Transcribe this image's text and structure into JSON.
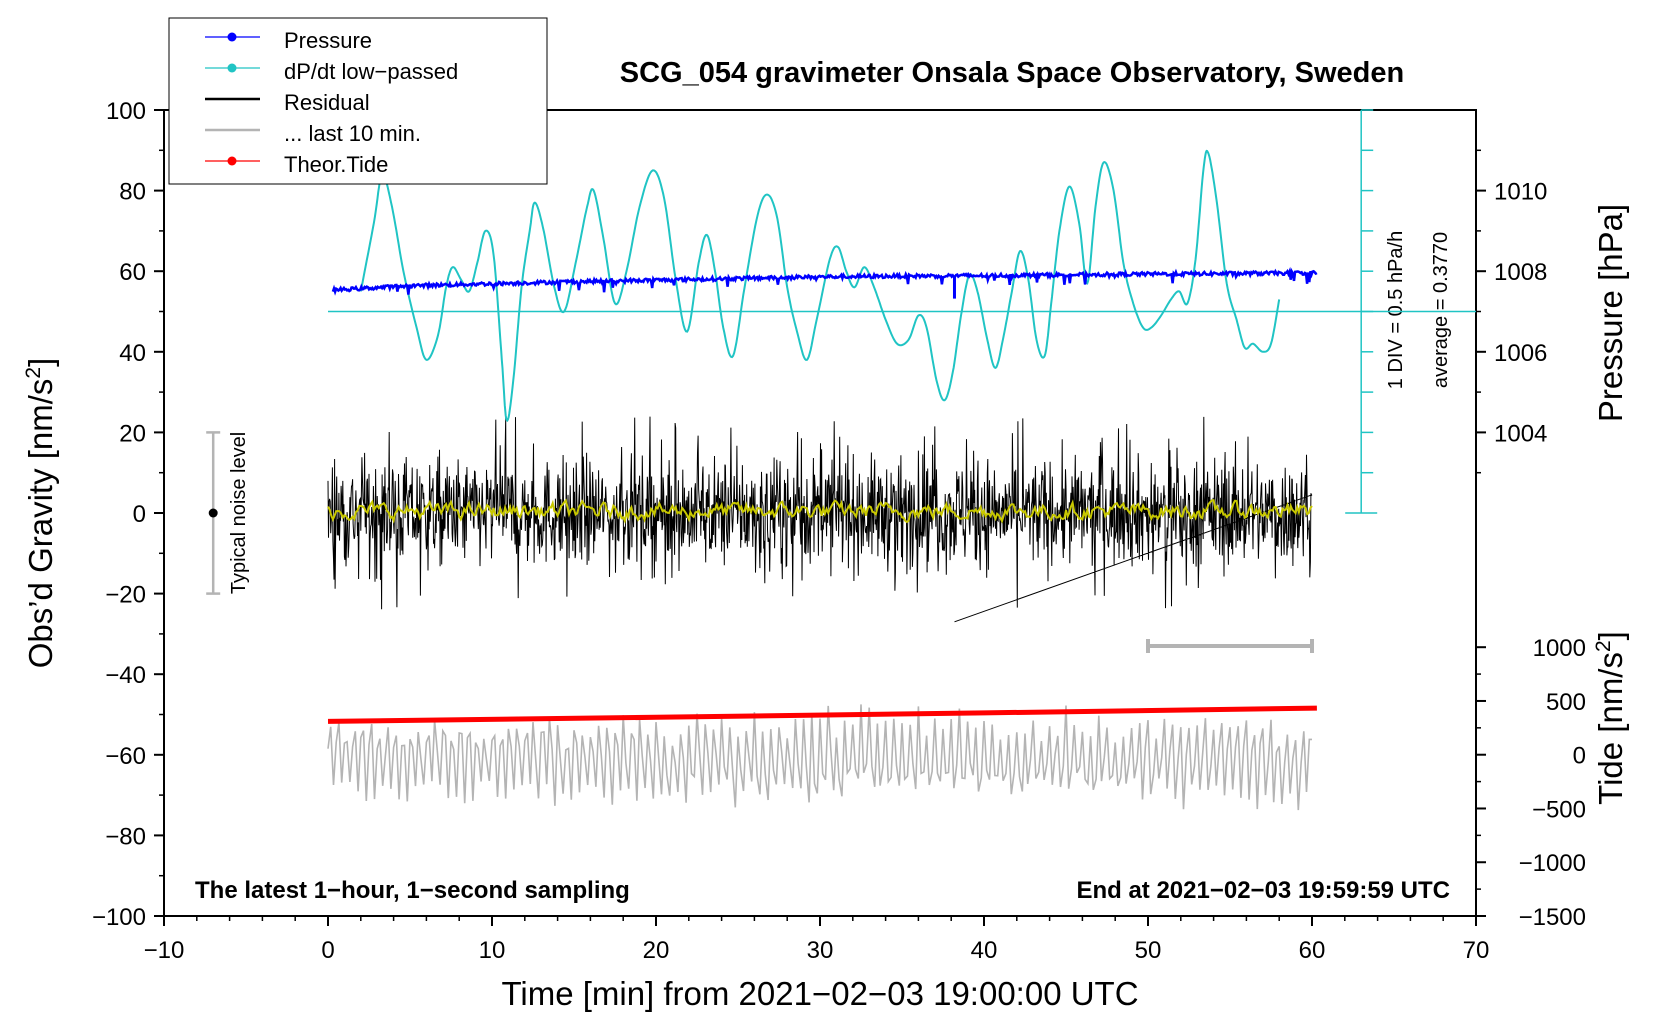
{
  "chart_data": {
    "type": "line",
    "title": "SCG_054 gravimeter Onsala Space Observatory, Sweden",
    "xlabel": "Time [min] from 2021−02−03 19:00:00 UTC",
    "ylabel": "Obs’d Gravity [nm/s²]",
    "ylabel_main": "Obs’d Gravity [nm/s",
    "ylabel_sup": "2",
    "ylabel_close": "]",
    "xlim": [
      -10,
      70
    ],
    "ylim": [
      -100,
      100
    ],
    "x_ticks": [
      {
        "v": -10,
        "label": "−10"
      },
      {
        "v": 0,
        "label": "0"
      },
      {
        "v": 10,
        "label": "10"
      },
      {
        "v": 20,
        "label": "20"
      },
      {
        "v": 30,
        "label": "30"
      },
      {
        "v": 40,
        "label": "40"
      },
      {
        "v": 50,
        "label": "50"
      },
      {
        "v": 60,
        "label": "60"
      },
      {
        "v": 70,
        "label": "70"
      }
    ],
    "y_ticks": [
      {
        "v": 100,
        "label": "100"
      },
      {
        "v": 80,
        "label": "80"
      },
      {
        "v": 60,
        "label": "60"
      },
      {
        "v": 40,
        "label": "40"
      },
      {
        "v": 20,
        "label": "20"
      },
      {
        "v": 0,
        "label": "0"
      },
      {
        "v": -20,
        "label": "−20"
      },
      {
        "v": -40,
        "label": "−40"
      },
      {
        "v": -60,
        "label": "−60"
      },
      {
        "v": -80,
        "label": "−80"
      },
      {
        "v": -100,
        "label": "−100"
      }
    ],
    "pressure_axis": {
      "label": "Pressure [hPa]",
      "ticks": [
        {
          "v": 1010,
          "label": "1010"
        },
        {
          "v": 1008,
          "label": "1008"
        },
        {
          "v": 1006,
          "label": "1006"
        },
        {
          "v": 1004,
          "label": "1004"
        }
      ],
      "map": {
        "hpa_at": [
          1008,
          1010
        ],
        "gravity_at": [
          60,
          80
        ]
      }
    },
    "tide_axis": {
      "label_main": "Tide [nm/s",
      "label_sup": "2",
      "label_close": "]",
      "ticks": [
        {
          "v": 1000,
          "label": "1000"
        },
        {
          "v": 500,
          "label": "500"
        },
        {
          "v": 0,
          "label": "0"
        },
        {
          "v": -500,
          "label": "−500"
        },
        {
          "v": -1000,
          "label": "−1000"
        },
        {
          "v": -1500,
          "label": "−1500"
        }
      ],
      "map": {
        "tide_at": [
          -1500,
          1000
        ],
        "gravity_at": [
          -100,
          -33.3
        ]
      }
    },
    "dpdt_scale": {
      "text1": "1 DIV = 0.5 hPa/h",
      "text2": "average = 0.3770",
      "baseline_gravity": 50,
      "x": 63,
      "y_range": [
        0,
        100
      ],
      "div": 10
    },
    "series": [
      {
        "name": "Pressure",
        "color": "#0000ff",
        "style": "line-dots",
        "x_range": [
          0.3,
          60.3
        ],
        "points": [
          [
            0.3,
            55.3
          ],
          [
            5,
            56.4
          ],
          [
            10,
            56.9
          ],
          [
            15,
            57.4
          ],
          [
            20,
            57.8
          ],
          [
            25,
            58.2
          ],
          [
            30,
            58.6
          ],
          [
            35,
            58.8
          ],
          [
            40,
            58.9
          ],
          [
            45,
            59.1
          ],
          [
            50,
            59.3
          ],
          [
            55,
            59.4
          ],
          [
            60.3,
            59.6
          ]
        ]
      },
      {
        "name": "dP/dt low−passed",
        "color": "#20c4c4",
        "style": "line",
        "points": [
          [
            2,
            55
          ],
          [
            2.8,
            72
          ],
          [
            3.3,
            84
          ],
          [
            3.9,
            76
          ],
          [
            4.6,
            60
          ],
          [
            5.4,
            46
          ],
          [
            6,
            38
          ],
          [
            6.7,
            44
          ],
          [
            7.2,
            56
          ],
          [
            7.6,
            61
          ],
          [
            8.1,
            58
          ],
          [
            8.6,
            55
          ],
          [
            9.1,
            62
          ],
          [
            9.6,
            70
          ],
          [
            10.1,
            64
          ],
          [
            10.6,
            38
          ],
          [
            10.9,
            23
          ],
          [
            11.3,
            33
          ],
          [
            11.8,
            56
          ],
          [
            12.3,
            70
          ],
          [
            12.6,
            77
          ],
          [
            13.1,
            71
          ],
          [
            13.8,
            56
          ],
          [
            14.4,
            50
          ],
          [
            15.1,
            62
          ],
          [
            15.8,
            76
          ],
          [
            16.2,
            80
          ],
          [
            16.8,
            68
          ],
          [
            17.5,
            52
          ],
          [
            18.2,
            60
          ],
          [
            19,
            76
          ],
          [
            19.8,
            85
          ],
          [
            20.5,
            78
          ],
          [
            21.2,
            58
          ],
          [
            21.9,
            45
          ],
          [
            22.6,
            62
          ],
          [
            23.1,
            69
          ],
          [
            23.6,
            60
          ],
          [
            24.1,
            46
          ],
          [
            24.7,
            39
          ],
          [
            25.4,
            56
          ],
          [
            26.2,
            74
          ],
          [
            26.8,
            79
          ],
          [
            27.4,
            73
          ],
          [
            28,
            56
          ],
          [
            28.6,
            45
          ],
          [
            29.2,
            38
          ],
          [
            29.8,
            48
          ],
          [
            30.6,
            63
          ],
          [
            31.1,
            66
          ],
          [
            31.6,
            60
          ],
          [
            32.1,
            56
          ],
          [
            32.7,
            61
          ],
          [
            33.3,
            56
          ],
          [
            34,
            48
          ],
          [
            34.7,
            42
          ],
          [
            35.4,
            43
          ],
          [
            36,
            49
          ],
          [
            36.5,
            46
          ],
          [
            37.1,
            33
          ],
          [
            37.6,
            28
          ],
          [
            38.1,
            35
          ],
          [
            38.6,
            49
          ],
          [
            39.1,
            59
          ],
          [
            39.6,
            55
          ],
          [
            40.2,
            43
          ],
          [
            40.7,
            36
          ],
          [
            41.2,
            44
          ],
          [
            41.7,
            55
          ],
          [
            42.2,
            65
          ],
          [
            42.7,
            58
          ],
          [
            43.2,
            43
          ],
          [
            43.7,
            39
          ],
          [
            44.1,
            52
          ],
          [
            44.6,
            70
          ],
          [
            45.2,
            81
          ],
          [
            45.8,
            72
          ],
          [
            46.3,
            57
          ],
          [
            46.8,
            76
          ],
          [
            47.3,
            87
          ],
          [
            47.9,
            80
          ],
          [
            48.5,
            62
          ],
          [
            49.1,
            52
          ],
          [
            49.7,
            46
          ],
          [
            50.2,
            46
          ],
          [
            50.8,
            49
          ],
          [
            51.4,
            53
          ],
          [
            51.9,
            55
          ],
          [
            52.4,
            52
          ],
          [
            52.9,
            63
          ],
          [
            53.4,
            86
          ],
          [
            53.7,
            89
          ],
          [
            54.2,
            77
          ],
          [
            54.8,
            57
          ],
          [
            55.4,
            48
          ],
          [
            55.9,
            41
          ],
          [
            56.4,
            42
          ],
          [
            57,
            40
          ],
          [
            57.5,
            42
          ],
          [
            58,
            53
          ]
        ]
      },
      {
        "name": "Residual",
        "color": "#000000",
        "style": "noise",
        "x_range": [
          0,
          60
        ],
        "typical_amplitude": 12,
        "extremes": [
          26,
          -27
        ]
      },
      {
        "name": "... last 10 min.",
        "color": "#b4b4b4",
        "style": "wave",
        "x_range": [
          0,
          60
        ],
        "center_gravity": -61,
        "amplitude": 12
      },
      {
        "name": "Theor.Tide",
        "color": "#ff0000",
        "style": "line-dots",
        "points": [
          [
            0,
            -51.7
          ],
          [
            20,
            -50.7
          ],
          [
            40,
            -49.6
          ],
          [
            60.3,
            -48.4
          ]
        ]
      },
      {
        "name": "Residual smoothed",
        "color": "#c8c800",
        "style": "smooth-line",
        "x_range": [
          0,
          60
        ],
        "center_gravity": 0.5
      }
    ],
    "legend": {
      "position": "top-left",
      "entries": [
        {
          "label": "Pressure",
          "color": "#0000ff",
          "marker": true
        },
        {
          "label": "dP/dt low−passed",
          "color": "#20c4c4",
          "marker": true
        },
        {
          "label": "Residual",
          "color": "#000000",
          "marker": false
        },
        {
          "label": "... last 10 min.",
          "color": "#b4b4b4",
          "marker": false
        },
        {
          "label": "Theor.Tide",
          "color": "#ff0000",
          "marker": true
        }
      ]
    },
    "noise_bar": {
      "x": -7,
      "y_range": [
        -20,
        20
      ],
      "label": "Typical noise level"
    },
    "ten_minute_bar": {
      "x_range": [
        50,
        60
      ],
      "y": -33
    },
    "annotations": {
      "bottom_left": "The latest 1−hour, 1−second sampling",
      "bottom_right": "End at 2021−02−03 19:59:59 UTC"
    }
  }
}
